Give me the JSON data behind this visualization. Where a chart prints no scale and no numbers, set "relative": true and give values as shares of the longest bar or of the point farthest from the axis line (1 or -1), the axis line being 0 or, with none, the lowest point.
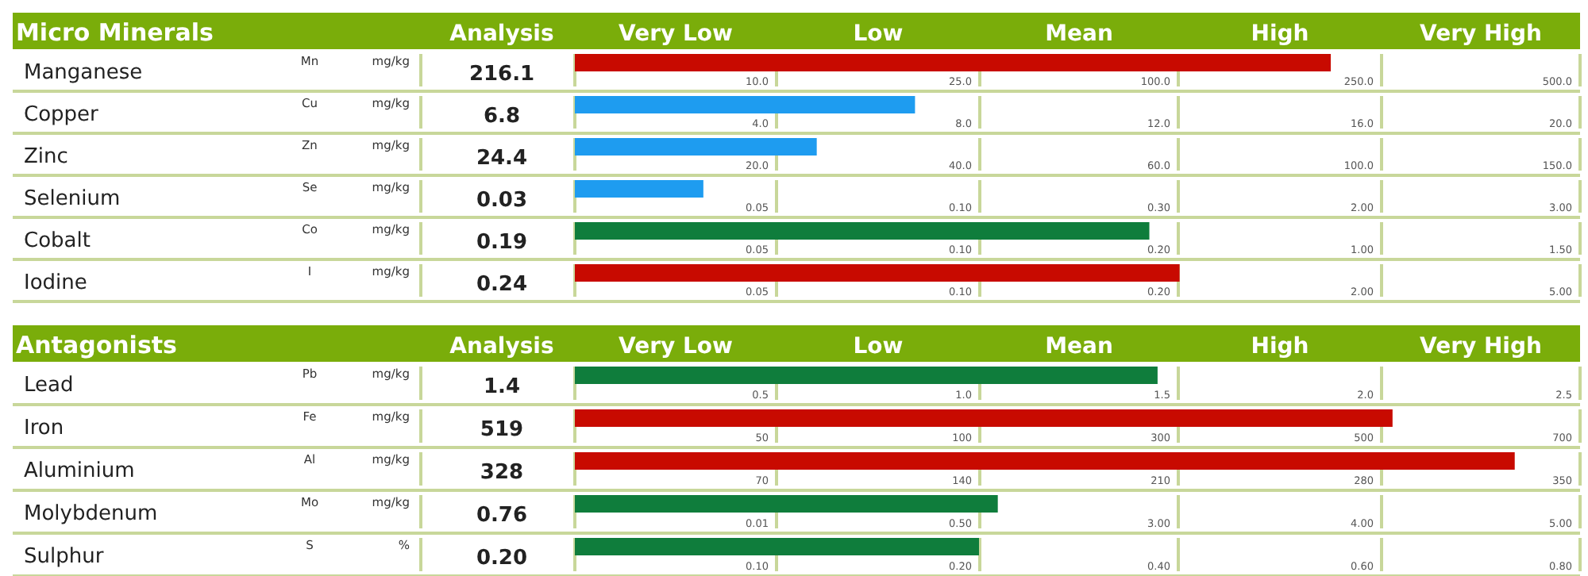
{
  "chart_data": [
    {
      "type": "bar",
      "orientation": "horizontal",
      "relative": true,
      "grid": true,
      "title": "Micro Minerals",
      "categories": [
        "Manganese",
        "Copper",
        "Zinc",
        "Selenium",
        "Cobalt",
        "Iodine"
      ],
      "values": [
        1,
        0.45,
        0.32,
        0.17,
        0.76,
        0.8
      ],
      "colors": [
        "#c80a00",
        "#1e9cf0",
        "#1e9cf0",
        "#1e9cf0",
        "#0f7d3c",
        "#c80a00"
      ],
      "annotations": [
        "Analysis",
        "Very Low",
        "Low",
        "Mean",
        "High",
        "Very High",
        "Mn",
        "mg/kg",
        "216.1",
        "10.0",
        "25.0",
        "100.0",
        "250.0",
        "500.0",
        "Cu",
        "mg/kg",
        "6.8",
        "4.0",
        "8.0",
        "12.0",
        "16.0",
        "20.0",
        "Zn",
        "mg/kg",
        "24.4",
        "20.0",
        "40.0",
        "60.0",
        "100.0",
        "150.0",
        "Se",
        "mg/kg",
        "0.03",
        "0.05",
        "0.10",
        "0.30",
        "2.00",
        "3.00",
        "Co",
        "mg/kg",
        "0.19",
        "0.05",
        "0.10",
        "0.20",
        "1.00",
        "1.50",
        "I",
        "mg/kg",
        "0.24",
        "0.05",
        "0.10",
        "0.20",
        "2.00",
        "5.00"
      ]
    },
    {
      "type": "bar",
      "orientation": "horizontal",
      "relative": true,
      "grid": true,
      "title": "Antagonists",
      "categories": [
        "Lead",
        "Iron",
        "Aluminium",
        "Molybdenum",
        "Sulphur"
      ],
      "values": [
        0.62,
        0.87,
        1,
        0.45,
        0.43
      ],
      "colors": [
        "#0f7d3c",
        "#c80a00",
        "#c80a00",
        "#0f7d3c",
        "#0f7d3c"
      ],
      "annotations": [
        "Analysis",
        "Very Low",
        "Low",
        "Mean",
        "High",
        "Very High",
        "Pb",
        "mg/kg",
        "1.4",
        "0.5",
        "1.0",
        "1.5",
        "2.0",
        "2.5",
        "Fe",
        "mg/kg",
        "519",
        "50",
        "100",
        "300",
        "500",
        "700",
        "Al",
        "mg/kg",
        "328",
        "70",
        "140",
        "210",
        "280",
        "350",
        "Mo",
        "mg/kg",
        "0.76",
        "0.01",
        "0.50",
        "3.00",
        "4.00",
        "5.00",
        "S",
        "%",
        "0.20",
        "0.10",
        "0.20",
        "0.40",
        "0.60",
        "0.80"
      ]
    }
  ]
}
